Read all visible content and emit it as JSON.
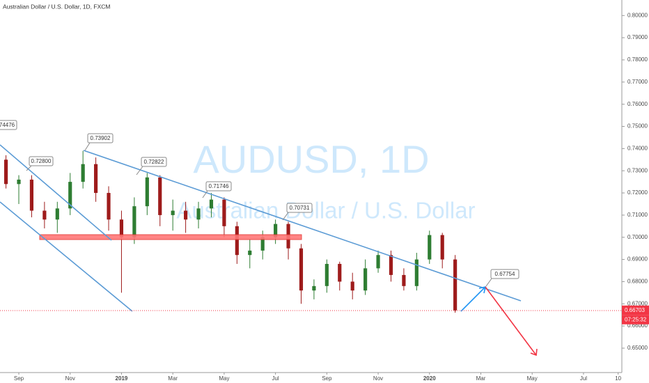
{
  "chart_data": {
    "type": "candlestick",
    "title": "Australian Dollar / U.S. Dollar, 1D, FXCM",
    "watermark": "AUDUSD, 1D",
    "watermark_subtitle": "Australian Dollar / U.S. Dollar",
    "up_color": "#2e7d32",
    "down_color": "#9e1b1b",
    "grid": false,
    "x": [
      -0.5,
      0.0,
      0.5,
      1.0,
      1.5,
      2.0,
      2.5,
      3.0,
      3.5,
      4.0,
      4.5,
      5.0,
      5.5,
      6.0,
      6.5,
      7.0,
      7.5,
      8.0,
      8.5,
      9.0,
      9.5,
      10.0,
      10.5,
      11.0,
      11.5,
      12.0,
      12.5,
      13.0,
      13.5,
      14.0,
      14.5,
      15.0,
      15.5,
      16.0,
      16.5,
      17.0
    ],
    "open": [
      0.735,
      0.724,
      0.726,
      0.712,
      0.708,
      0.713,
      0.725,
      0.733,
      0.72,
      0.708,
      0.7,
      0.714,
      0.727,
      0.71,
      0.712,
      0.708,
      0.713,
      0.717,
      0.705,
      0.692,
      0.694,
      0.7,
      0.706,
      0.695,
      0.676,
      0.678,
      0.688,
      0.68,
      0.676,
      0.686,
      0.692,
      0.683,
      0.678,
      0.69,
      0.701,
      0.69
    ],
    "high": [
      0.737,
      0.728,
      0.728,
      0.716,
      0.716,
      0.729,
      0.739,
      0.736,
      0.723,
      0.712,
      0.718,
      0.729,
      0.728,
      0.717,
      0.716,
      0.716,
      0.72,
      0.718,
      0.707,
      0.699,
      0.703,
      0.708,
      0.707,
      0.697,
      0.681,
      0.69,
      0.689,
      0.684,
      0.69,
      0.694,
      0.694,
      0.686,
      0.693,
      0.703,
      0.702,
      0.692
    ],
    "low": [
      0.722,
      0.715,
      0.709,
      0.704,
      0.702,
      0.71,
      0.722,
      0.716,
      0.703,
      0.675,
      0.697,
      0.71,
      0.705,
      0.703,
      0.702,
      0.704,
      0.709,
      0.7,
      0.688,
      0.686,
      0.69,
      0.697,
      0.69,
      0.67,
      0.672,
      0.675,
      0.676,
      0.672,
      0.674,
      0.684,
      0.68,
      0.676,
      0.676,
      0.688,
      0.686,
      0.666
    ],
    "close": [
      0.724,
      0.726,
      0.712,
      0.708,
      0.713,
      0.725,
      0.733,
      0.72,
      0.708,
      0.7,
      0.714,
      0.727,
      0.71,
      0.712,
      0.708,
      0.713,
      0.717,
      0.705,
      0.692,
      0.694,
      0.7,
      0.706,
      0.695,
      0.676,
      0.678,
      0.688,
      0.68,
      0.676,
      0.686,
      0.692,
      0.683,
      0.678,
      0.69,
      0.701,
      0.69,
      0.66703
    ],
    "xlim": [
      -0.733,
      23.494
    ],
    "xticks": [
      {
        "value": 0,
        "label": "Sep"
      },
      {
        "value": 2,
        "label": "Nov"
      },
      {
        "value": 4,
        "label": "2019"
      },
      {
        "value": 6,
        "label": "Mar"
      },
      {
        "value": 8,
        "label": "May"
      },
      {
        "value": 10,
        "label": "Jul"
      },
      {
        "value": 12,
        "label": "Sep"
      },
      {
        "value": 14,
        "label": "Nov"
      },
      {
        "value": 16,
        "label": "2020"
      },
      {
        "value": 18,
        "label": "Mar"
      },
      {
        "value": 20,
        "label": "May"
      },
      {
        "value": 22,
        "label": "Jul"
      },
      {
        "value": 23.35,
        "label": "10"
      }
    ],
    "ylim": [
      0.639,
      0.807
    ],
    "yticks": [
      {
        "value": 0.65,
        "label": "0.65000"
      },
      {
        "value": 0.66,
        "label": "0.66000"
      },
      {
        "value": 0.67,
        "label": "0.67000"
      },
      {
        "value": 0.68,
        "label": "0.68000"
      },
      {
        "value": 0.69,
        "label": "0.69000"
      },
      {
        "value": 0.7,
        "label": "0.70000"
      },
      {
        "value": 0.71,
        "label": "0.71000"
      },
      {
        "value": 0.72,
        "label": "0.72000"
      },
      {
        "value": 0.73,
        "label": "0.73000"
      },
      {
        "value": 0.74,
        "label": "0.74000"
      },
      {
        "value": 0.75,
        "label": "0.75000"
      },
      {
        "value": 0.76,
        "label": "0.76000"
      },
      {
        "value": 0.77,
        "label": "0.77000"
      },
      {
        "value": 0.78,
        "label": "0.78000"
      },
      {
        "value": 0.79,
        "label": "0.79000"
      },
      {
        "value": 0.8,
        "label": "0.80000"
      }
    ],
    "last_price": {
      "value": 0.66703,
      "label": "0.66703"
    },
    "countdown": "07:25:32",
    "annotations": [
      "74476",
      "0.72800",
      "0.73902",
      "0.72822",
      "0.71746",
      "0.70731",
      "0.67754"
    ]
  }
}
